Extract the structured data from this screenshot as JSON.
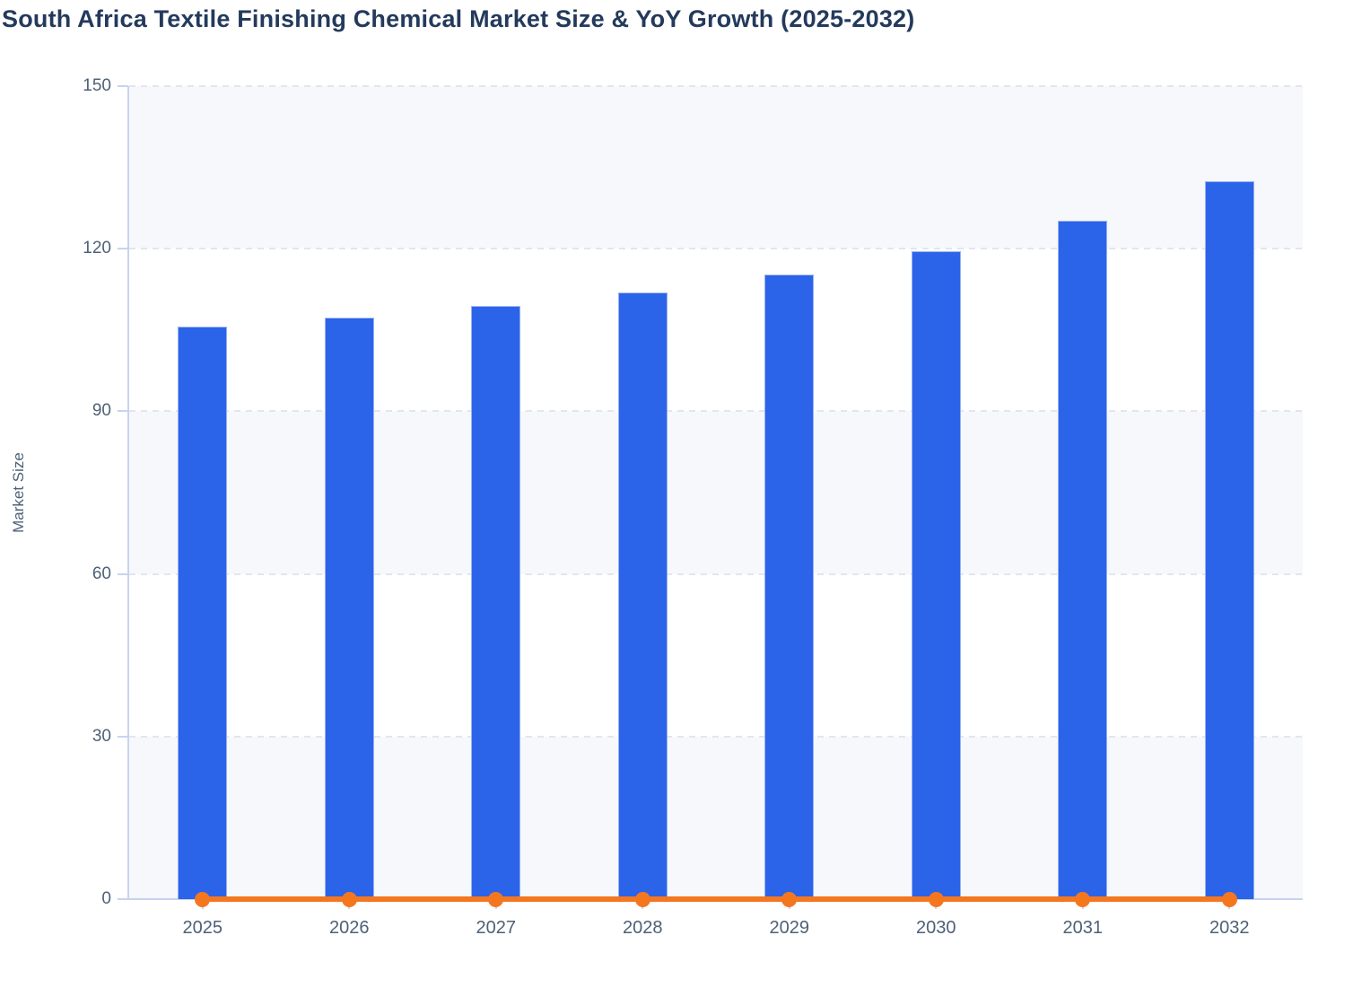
{
  "page": {
    "background": "#ffffff"
  },
  "chart_data": {
    "type": "bar",
    "title": "South Africa Textile Finishing Chemical Market Size & YoY Growth (2025-2032)",
    "xlabel": "",
    "ylabel": "Market Size",
    "categories": [
      "2025",
      "2026",
      "2027",
      "2028",
      "2029",
      "2030",
      "2031",
      "2032"
    ],
    "series": [
      {
        "name": "Market Size",
        "type": "bar",
        "color": "#2B63E9",
        "values": [
          105.6,
          107.3,
          109.4,
          112.0,
          115.2,
          119.6,
          125.2,
          132.5
        ]
      },
      {
        "name": "YoY Growth",
        "type": "line",
        "color": "#F4771F",
        "values": [
          0,
          0,
          0,
          0,
          0,
          0,
          0,
          0
        ]
      }
    ],
    "ylim": [
      0,
      150
    ],
    "yticks": [
      150,
      120,
      90,
      60,
      30,
      0
    ],
    "grid": "horizontal-dashed",
    "plot_bands": "alternating gray/white per 30 units, topmost band gray",
    "legend_position": "none"
  },
  "colors": {
    "bar_fill": "#2B63E9",
    "bar_border": "#ABC0F2",
    "line_orange": "#F4771F",
    "band_gray": "#F7F8FB",
    "gridline": "#E3E6EC",
    "axis_line": "#C8D3EE",
    "tick_label": "#4E6078",
    "title_text": "#233A5C"
  }
}
